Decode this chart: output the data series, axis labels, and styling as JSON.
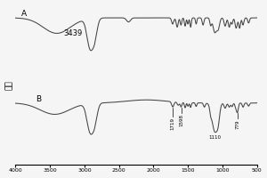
{
  "ylabel": "强度",
  "xmin": 500,
  "xmax": 4000,
  "background_color": "#f5f5f5",
  "label_A": "A",
  "label_B": "B",
  "label_3439": "3439",
  "label_1719": "1719",
  "label_1598": "1598",
  "label_1110": "1110",
  "label_779": "779",
  "xticks": [
    4000,
    3500,
    3000,
    2500,
    2000,
    1500,
    1000,
    500
  ],
  "line_color": "#444444"
}
